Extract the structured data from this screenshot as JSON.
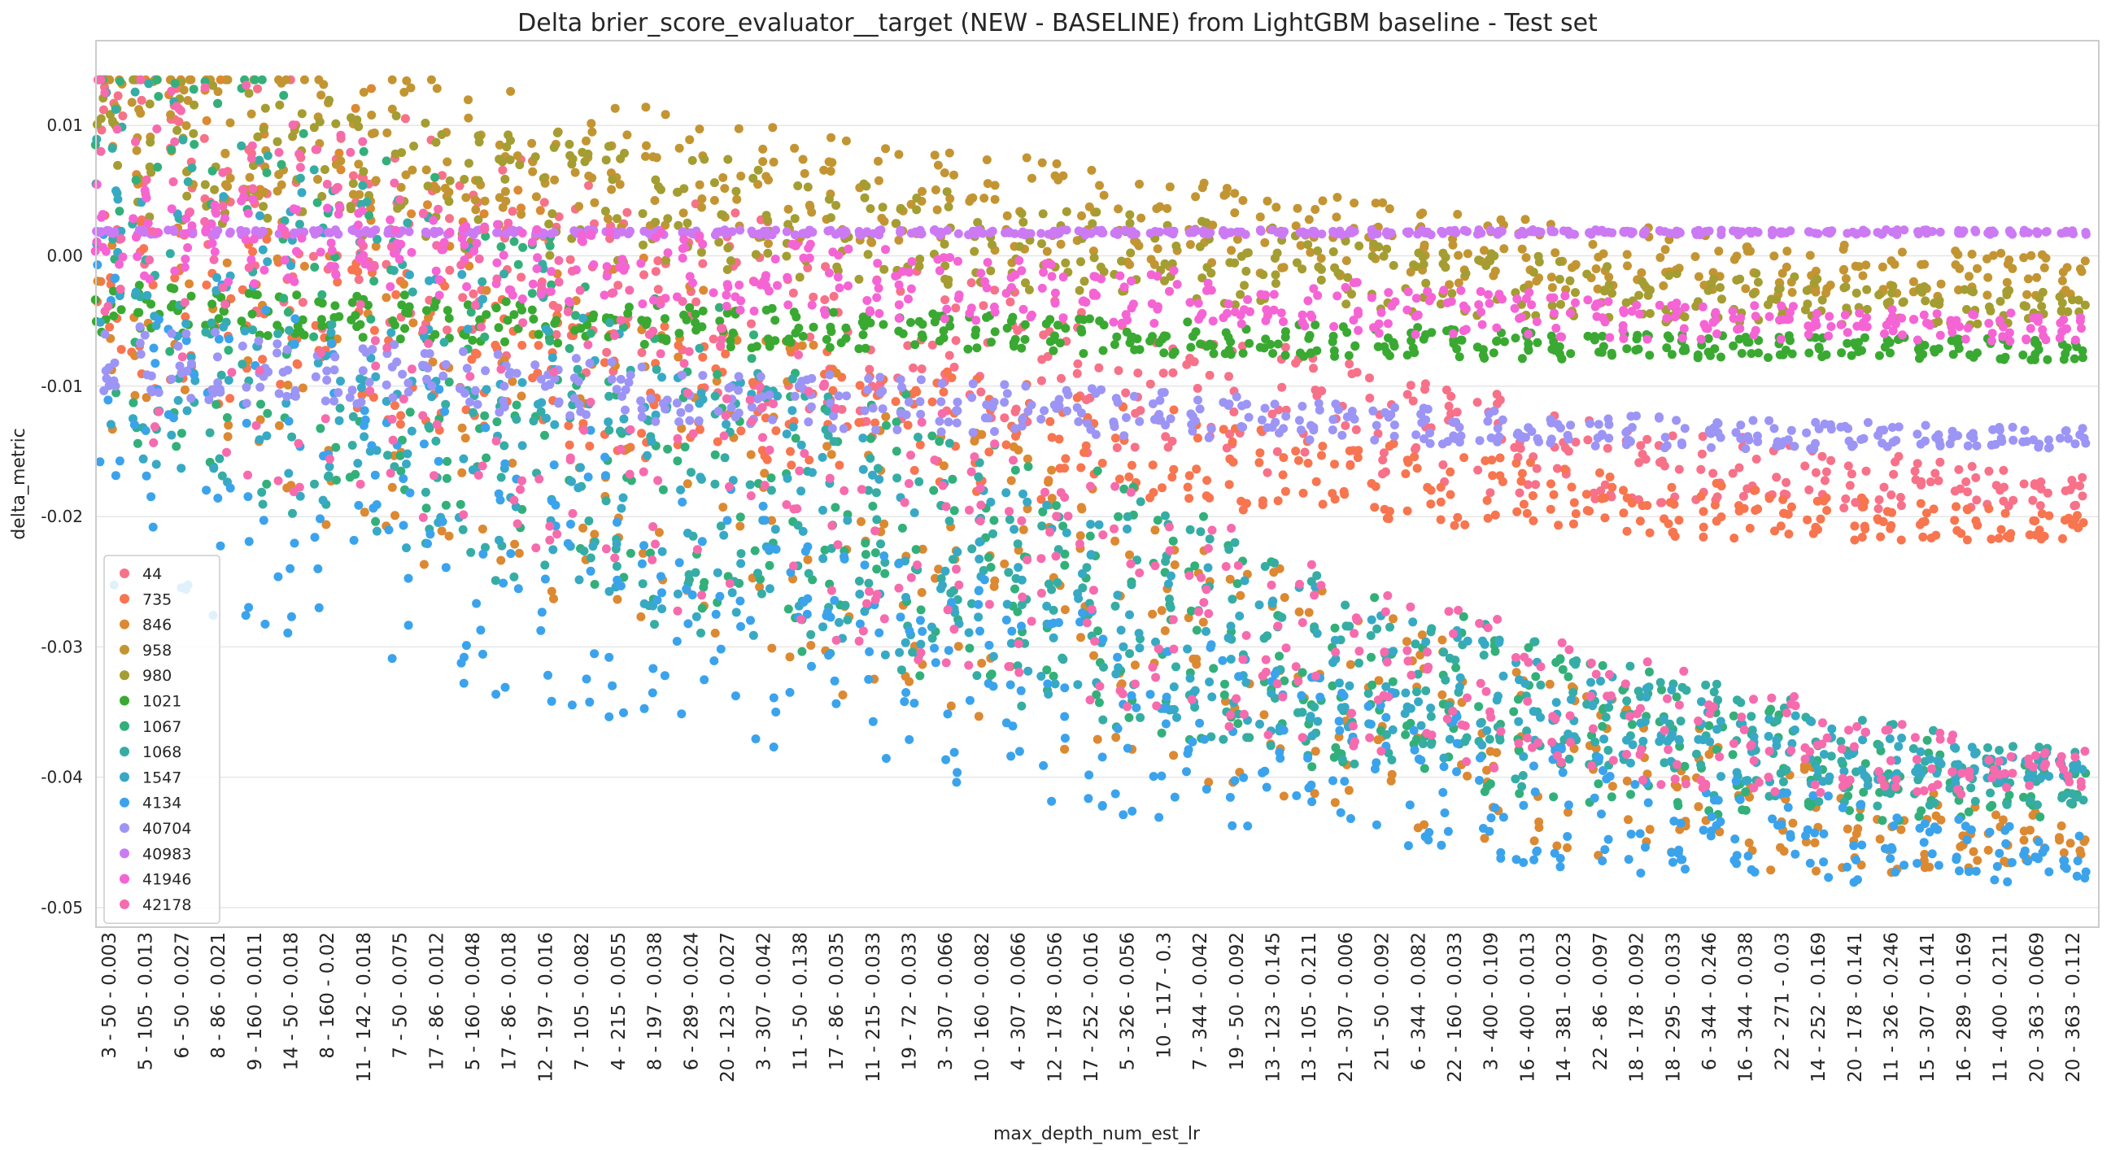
{
  "chart_data": {
    "type": "scatter",
    "title": "Delta brier_score_evaluator__target (NEW - BASELINE) from LightGBM baseline - Test set",
    "xlabel": "max_depth_num_est_lr",
    "ylabel": "delta_metric",
    "ylim": [
      -0.0515,
      0.0165
    ],
    "yticks": [
      {
        "value": 0.01,
        "label": "0.01"
      },
      {
        "value": 0.0,
        "label": "0.00"
      },
      {
        "value": -0.01,
        "label": "-0.01"
      },
      {
        "value": -0.02,
        "label": "-0.02"
      },
      {
        "value": -0.03,
        "label": "-0.03"
      },
      {
        "value": -0.04,
        "label": "-0.04"
      },
      {
        "value": -0.05,
        "label": "-0.05"
      }
    ],
    "grid": true,
    "legend_placement": "lower-left",
    "categories": [
      "3 - 50 - 0.003",
      "5 - 105 - 0.013",
      "6 - 50 - 0.027",
      "8 - 86 - 0.021",
      "9 - 160 - 0.011",
      "14 - 50 - 0.018",
      "8 - 160 - 0.02",
      "11 - 142 - 0.018",
      "7 - 50 - 0.075",
      "17 - 86 - 0.012",
      "5 - 160 - 0.048",
      "17 - 86 - 0.018",
      "12 - 197 - 0.016",
      "7 - 105 - 0.082",
      "4 - 215 - 0.055",
      "8 - 197 - 0.038",
      "6 - 289 - 0.024",
      "20 - 123 - 0.027",
      "3 - 307 - 0.042",
      "11 - 50 - 0.138",
      "17 - 86 - 0.035",
      "11 - 215 - 0.033",
      "19 - 72 - 0.033",
      "3 - 307 - 0.066",
      "10 - 160 - 0.082",
      "4 - 307 - 0.066",
      "12 - 178 - 0.056",
      "17 - 252 - 0.016",
      "5 - 326 - 0.056",
      "10 - 117 - 0.3",
      "7 - 344 - 0.042",
      "19 - 50 - 0.092",
      "13 - 123 - 0.145",
      "13 - 105 - 0.211",
      "21 - 307 - 0.006",
      "21 - 50 - 0.092",
      "6 - 344 - 0.082",
      "22 - 160 - 0.033",
      "3 - 400 - 0.109",
      "16 - 400 - 0.013",
      "14 - 381 - 0.023",
      "22 - 86 - 0.097",
      "18 - 178 - 0.092",
      "18 - 295 - 0.033",
      "6 - 344 - 0.246",
      "16 - 344 - 0.038",
      "22 - 271 - 0.03",
      "14 - 252 - 0.169",
      "20 - 178 - 0.141",
      "11 - 326 - 0.246",
      "15 - 307 - 0.141",
      "16 - 289 - 0.169",
      "11 - 400 - 0.211",
      "20 - 363 - 0.069",
      "20 - 363 - 0.112"
    ],
    "series": [
      {
        "name": "44",
        "color": "#f77189",
        "start_y": 0.008,
        "end_y": -0.018,
        "spread": 0.0012
      },
      {
        "name": "735",
        "color": "#f7754f",
        "start_y": -0.003,
        "end_y": -0.0207,
        "spread": 0.001
      },
      {
        "name": "846",
        "color": "#dc8932",
        "start_y": 0.006,
        "end_y": -0.045,
        "spread": 0.002
      },
      {
        "name": "958",
        "color": "#c39532",
        "start_y": 0.012,
        "end_y": -0.0015,
        "spread": 0.0015
      },
      {
        "name": "980",
        "color": "#a49d32",
        "start_y": 0.009,
        "end_y": -0.004,
        "spread": 0.0012
      },
      {
        "name": "1021",
        "color": "#3aa932",
        "start_y": -0.004,
        "end_y": -0.0072,
        "spread": 0.0008
      },
      {
        "name": "1067",
        "color": "#33b07a",
        "start_y": 0.004,
        "end_y": -0.041,
        "spread": 0.002
      },
      {
        "name": "1068",
        "color": "#36ada4",
        "start_y": 0.0,
        "end_y": -0.04,
        "spread": 0.002
      },
      {
        "name": "1547",
        "color": "#38a9c5",
        "start_y": -0.002,
        "end_y": -0.0395,
        "spread": 0.0008
      },
      {
        "name": "4134",
        "color": "#3ba3ec",
        "start_y": -0.012,
        "end_y": -0.046,
        "spread": 0.0018
      },
      {
        "name": "40704",
        "color": "#9c95f5",
        "start_y": -0.008,
        "end_y": -0.014,
        "spread": 0.0008
      },
      {
        "name": "40983",
        "color": "#cc7af4",
        "start_y": 0.0018,
        "end_y": 0.0018,
        "spread": 0.0002
      },
      {
        "name": "41946",
        "color": "#f564d4",
        "start_y": 0.002,
        "end_y": -0.0055,
        "spread": 0.001
      },
      {
        "name": "42178",
        "color": "#f66bad",
        "start_y": 0.003,
        "end_y": -0.0395,
        "spread": 0.0015
      }
    ]
  }
}
